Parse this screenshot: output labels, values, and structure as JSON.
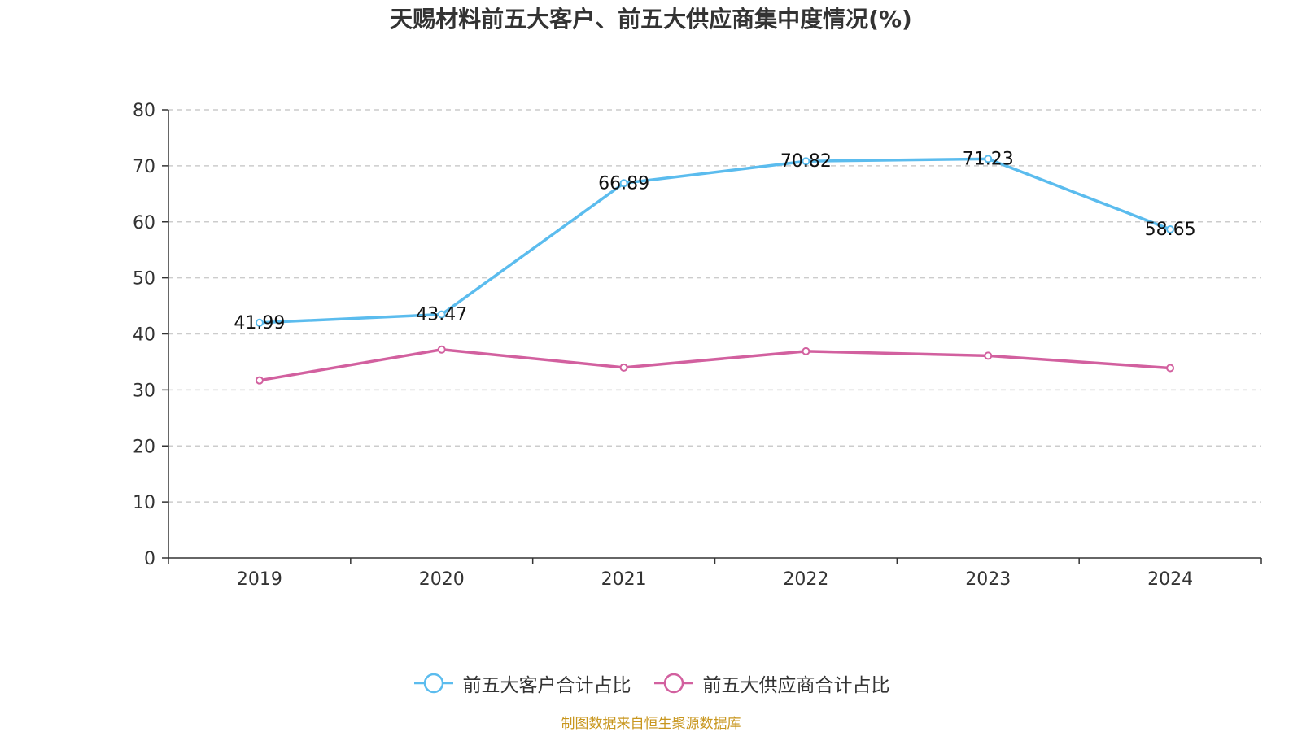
{
  "chart_data": {
    "type": "line",
    "title": "天赐材料前五大客户、前五大供应商集中度情况(%)",
    "categories": [
      "2019",
      "2020",
      "2021",
      "2022",
      "2023",
      "2024"
    ],
    "ylim": [
      0,
      80
    ],
    "yticks": [
      0,
      10,
      20,
      30,
      40,
      50,
      60,
      70,
      80
    ],
    "grid": true,
    "legend_position": "bottom-center",
    "series": [
      {
        "name": "前五大客户合计占比",
        "color": "#5bbcee",
        "values": [
          41.99,
          43.47,
          66.89,
          70.82,
          71.23,
          58.65
        ],
        "labels": [
          "41.99",
          "43.47",
          "66.89",
          "70.82",
          "71.23",
          "58.65"
        ]
      },
      {
        "name": "前五大供应商合计占比",
        "color": "#d2609f",
        "values": [
          31.7,
          37.2,
          34.0,
          36.9,
          36.1,
          33.9
        ],
        "labels": null
      }
    ]
  },
  "source_note": "制图数据来自恒生聚源数据库"
}
